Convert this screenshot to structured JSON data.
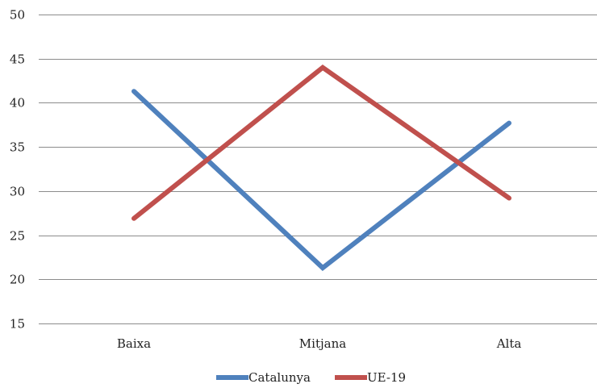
{
  "chart_data": {
    "type": "line",
    "categories": [
      "Baixa",
      "Mitjana",
      "Alta"
    ],
    "series": [
      {
        "name": "Catalunya",
        "values": [
          41.3,
          21.3,
          37.7
        ],
        "color": "#4F81BD"
      },
      {
        "name": "UE-19",
        "values": [
          26.9,
          44.0,
          29.2
        ],
        "color": "#C0504D"
      }
    ],
    "ylim": [
      15,
      50
    ],
    "yticks": [
      15,
      20,
      25,
      30,
      35,
      40,
      45,
      50
    ],
    "grid": true,
    "legend_position": "bottom",
    "title": "",
    "xlabel": "",
    "ylabel": ""
  }
}
